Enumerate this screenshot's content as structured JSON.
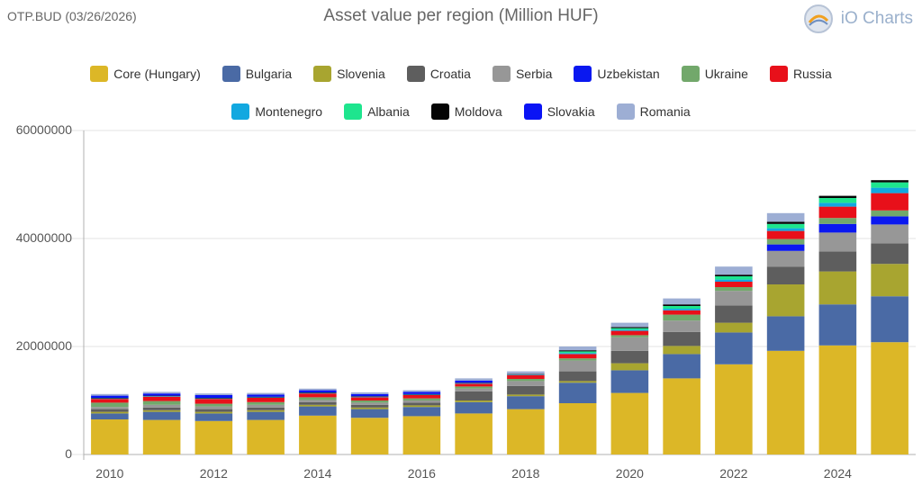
{
  "header": {
    "ticker": "OTP.BUD (03/26/2026)",
    "title": "Asset value per region (Million HUF)",
    "brand": "iO Charts"
  },
  "colors": {
    "axis": "#b0b0b0",
    "grid": "#e3e3e3",
    "tick_text": "#555555"
  },
  "chart_data": {
    "type": "bar",
    "stacked": true,
    "title": "Asset value per region (Million HUF)",
    "xlabel": "",
    "ylabel": "",
    "ylim": [
      0,
      60000000
    ],
    "yticks": [
      0,
      20000000,
      40000000,
      60000000
    ],
    "ytick_labels": [
      "0",
      "20000000",
      "40000000",
      "60000000"
    ],
    "xtick_labels": [
      "2010",
      "2012",
      "2014",
      "2016",
      "2018",
      "2020",
      "2022",
      "2024"
    ],
    "categories": [
      "2010",
      "2011",
      "2012",
      "2013",
      "2014",
      "2015",
      "2016",
      "2017",
      "2018",
      "2019",
      "2020",
      "2021",
      "2022",
      "2023",
      "2024",
      "2025"
    ],
    "grid": true,
    "legend_position": "top-center",
    "series": [
      {
        "name": "Core (Hungary)",
        "color": "#dcb727",
        "values": [
          6500000,
          6400000,
          6200000,
          6400000,
          7200000,
          6800000,
          7100000,
          7600000,
          8400000,
          9500000,
          11400000,
          14100000,
          16700000,
          19200000,
          20200000,
          20800000
        ]
      },
      {
        "name": "Bulgaria",
        "color": "#4a6aa5",
        "values": [
          1100000,
          1500000,
          1400000,
          1500000,
          1700000,
          1600000,
          1700000,
          2100000,
          2400000,
          3800000,
          4200000,
          4500000,
          5900000,
          6400000,
          7600000,
          8500000
        ]
      },
      {
        "name": "Slovenia",
        "color": "#a8a530",
        "values": [
          300000,
          300000,
          300000,
          300000,
          300000,
          300000,
          300000,
          300000,
          300000,
          300000,
          1300000,
          1500000,
          1800000,
          5900000,
          6100000,
          6000000
        ]
      },
      {
        "name": "Croatia",
        "color": "#5e5e5e",
        "values": [
          500000,
          500000,
          500000,
          500000,
          500000,
          500000,
          500000,
          1700000,
          1600000,
          1800000,
          2300000,
          2600000,
          3200000,
          3300000,
          3700000,
          3800000
        ]
      },
      {
        "name": "Serbia",
        "color": "#979797",
        "values": [
          400000,
          500000,
          500000,
          500000,
          400000,
          400000,
          400000,
          500000,
          900000,
          2000000,
          2500000,
          2100000,
          2700000,
          2900000,
          3500000,
          3500000
        ]
      },
      {
        "name": "Uzbekistan",
        "color": "#0a18f0",
        "values": [
          0,
          0,
          0,
          0,
          0,
          0,
          0,
          0,
          0,
          0,
          0,
          0,
          0,
          1200000,
          1600000,
          1500000
        ]
      },
      {
        "name": "Ukraine",
        "color": "#72a86b",
        "values": [
          800000,
          700000,
          500000,
          500000,
          500000,
          400000,
          400000,
          400000,
          400000,
          400000,
          400000,
          1100000,
          700000,
          1000000,
          1100000,
          1100000
        ]
      },
      {
        "name": "Russia",
        "color": "#e8101a",
        "values": [
          700000,
          800000,
          900000,
          800000,
          700000,
          600000,
          600000,
          500000,
          700000,
          800000,
          800000,
          800000,
          1000000,
          1500000,
          2100000,
          3200000
        ]
      },
      {
        "name": "Montenegro",
        "color": "#12a8e0",
        "values": [
          100000,
          100000,
          100000,
          100000,
          100000,
          100000,
          100000,
          100000,
          100000,
          200000,
          200000,
          300000,
          400000,
          500000,
          700000,
          1000000
        ]
      },
      {
        "name": "Albania",
        "color": "#1ee58e",
        "values": [
          0,
          0,
          0,
          0,
          0,
          0,
          0,
          0,
          0,
          300000,
          300000,
          500000,
          600000,
          800000,
          900000,
          1000000
        ]
      },
      {
        "name": "Moldova",
        "color": "#050505",
        "values": [
          100000,
          100000,
          100000,
          100000,
          100000,
          100000,
          100000,
          100000,
          100000,
          200000,
          200000,
          300000,
          300000,
          400000,
          400000,
          400000
        ]
      },
      {
        "name": "Slovakia",
        "color": "#0a14f5",
        "values": [
          400000,
          400000,
          500000,
          400000,
          400000,
          400000,
          400000,
          400000,
          0,
          0,
          0,
          0,
          0,
          0,
          0,
          0
        ]
      },
      {
        "name": "Romania",
        "color": "#9daed4",
        "values": [
          300000,
          300000,
          300000,
          300000,
          300000,
          300000,
          300000,
          400000,
          500000,
          700000,
          800000,
          1100000,
          1500000,
          1600000,
          0,
          0
        ]
      }
    ]
  }
}
